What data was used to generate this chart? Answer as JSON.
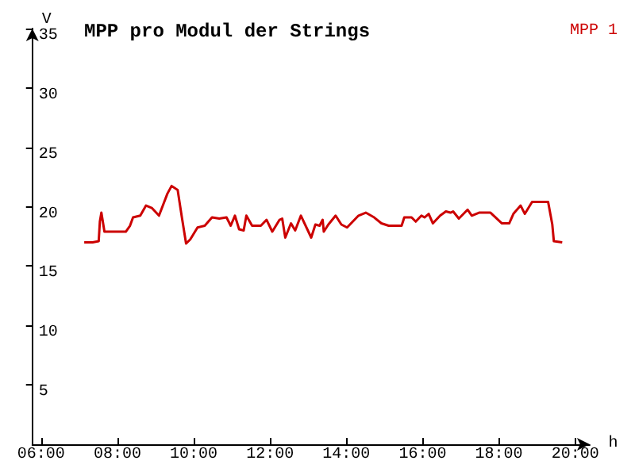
{
  "chart_data": {
    "type": "line",
    "title": "MPP pro Modul der Strings",
    "xlabel": "h",
    "ylabel": "V",
    "series": [
      {
        "name": "MPP 1",
        "color": "#cc0000",
        "x": [
          7.13,
          7.35,
          7.51,
          7.54,
          7.58,
          7.66,
          8.22,
          8.33,
          8.41,
          8.6,
          8.75,
          8.9,
          9.09,
          9.31,
          9.42,
          9.58,
          9.69,
          9.8,
          9.91,
          10.1,
          10.29,
          10.48,
          10.67,
          10.86,
          10.97,
          11.08,
          11.19,
          11.31,
          11.38,
          11.53,
          11.76,
          11.91,
          12.06,
          12.25,
          12.32,
          12.4,
          12.55,
          12.66,
          12.81,
          13.08,
          13.19,
          13.3,
          13.38,
          13.41,
          13.53,
          13.72,
          13.87,
          14.02,
          14.32,
          14.51,
          14.73,
          14.92,
          15.11,
          15.18,
          15.45,
          15.52,
          15.71,
          15.82,
          15.97,
          16.05,
          16.16,
          16.27,
          16.46,
          16.61,
          16.73,
          16.8,
          16.95,
          17.18,
          17.29,
          17.48,
          17.78,
          18.08,
          18.27,
          18.38,
          18.57,
          18.68,
          18.87,
          19.29,
          19.4,
          19.44,
          19.66
        ],
        "values": [
          17.0,
          17.0,
          17.1,
          18.75,
          19.5,
          17.9,
          17.9,
          18.4,
          19.1,
          19.25,
          20.1,
          19.9,
          19.25,
          21.1,
          21.75,
          21.4,
          19.1,
          16.9,
          17.25,
          18.25,
          18.4,
          19.1,
          19.0,
          19.1,
          18.4,
          19.25,
          18.1,
          18.0,
          19.25,
          18.4,
          18.4,
          18.9,
          17.9,
          18.9,
          19.0,
          17.4,
          18.6,
          18.0,
          19.25,
          17.4,
          18.5,
          18.4,
          18.9,
          17.9,
          18.5,
          19.25,
          18.5,
          18.25,
          19.25,
          19.5,
          19.1,
          18.6,
          18.4,
          18.4,
          18.4,
          19.1,
          19.1,
          18.75,
          19.25,
          19.1,
          19.4,
          18.6,
          19.25,
          19.6,
          19.5,
          19.6,
          19.0,
          19.75,
          19.25,
          19.5,
          19.5,
          18.6,
          18.6,
          19.4,
          20.1,
          19.4,
          20.4,
          20.4,
          18.5,
          17.1,
          17.0
        ]
      }
    ],
    "xlim": [
      5.77,
      20.38
    ],
    "xticks": [
      {
        "value": 6,
        "label": "06:00"
      },
      {
        "value": 8,
        "label": "08:00"
      },
      {
        "value": 10,
        "label": "10:00"
      },
      {
        "value": 12,
        "label": "12:00"
      },
      {
        "value": 14,
        "label": "14:00"
      },
      {
        "value": 16,
        "label": "16:00"
      },
      {
        "value": 18,
        "label": "18:00"
      },
      {
        "value": 20,
        "label": "20:00"
      }
    ],
    "ylim": [
      0,
      35
    ],
    "yticks": [
      5,
      10,
      15,
      20,
      25,
      30,
      35
    ],
    "grid": false,
    "legend": "top right",
    "marker": "none",
    "line_style": "solid"
  }
}
